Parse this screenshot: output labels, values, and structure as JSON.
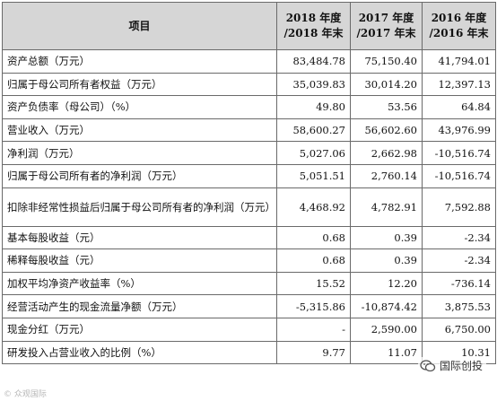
{
  "table": {
    "headers": [
      "项目",
      "2018 年度\n/2018 年末",
      "2017 年度\n/2017 年末",
      "2016 年度\n/2016 年末"
    ],
    "rows": [
      {
        "label": "资产总额（万元）",
        "values": [
          "83,484.78",
          "75,150.40",
          "41,794.01"
        ]
      },
      {
        "label": "归属于母公司所有者权益（万元）",
        "values": [
          "35,039.83",
          "30,014.20",
          "12,397.13"
        ]
      },
      {
        "label": "资产负债率（母公司）（%）",
        "values": [
          "49.80",
          "53.56",
          "64.84"
        ]
      },
      {
        "label": "营业收入（万元）",
        "values": [
          "58,600.27",
          "56,602.60",
          "43,976.99"
        ]
      },
      {
        "label": "净利润（万元）",
        "values": [
          "5,027.06",
          "2,662.98",
          "-10,516.74"
        ]
      },
      {
        "label": "归属于母公司所有者的净利润（万元）",
        "values": [
          "5,051.51",
          "2,760.14",
          "-10,516.74"
        ]
      },
      {
        "label": "扣除非经常性损益后归属于母公司所有者的净利润（万元）",
        "values": [
          "4,468.92",
          "4,782.91",
          "7,592.88"
        ],
        "tall": true
      },
      {
        "label": "基本每股收益（元）",
        "values": [
          "0.68",
          "0.39",
          "-2.34"
        ]
      },
      {
        "label": "稀释每股收益（元）",
        "values": [
          "0.68",
          "0.39",
          "-2.34"
        ]
      },
      {
        "label": "加权平均净资产收益率（%）",
        "values": [
          "15.52",
          "12.20",
          "-736.14"
        ]
      },
      {
        "label": "经营活动产生的现金流量净额（万元）",
        "values": [
          "-5,315.86",
          "-10,874.42",
          "3,875.53"
        ]
      },
      {
        "label": "现金分红（万元）",
        "values": [
          "-",
          "2,590.00",
          "6,750.00"
        ]
      },
      {
        "label": "研发投入占营业收入的比例（%）",
        "values": [
          "9.77",
          "11.07",
          "10.31"
        ]
      }
    ]
  },
  "watermark": {
    "left_text": "© 众观国际",
    "right_text": "国际创投",
    "icon": "wechat-icon"
  }
}
